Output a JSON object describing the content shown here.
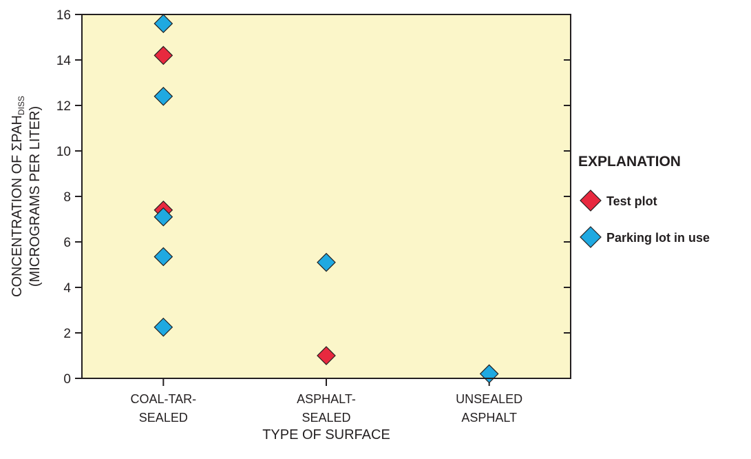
{
  "chart_data": {
    "type": "scatter",
    "x_categories": [
      [
        "COAL-TAR-",
        "SEALED"
      ],
      [
        "ASPHALT-",
        "SEALED"
      ],
      [
        "UNSEALED",
        "ASPHALT"
      ]
    ],
    "xlabel": "TYPE OF SURFACE",
    "ylabel_line1": "CONCENTRATION OF ΣPAH",
    "ylabel_subscript": "DISS",
    "ylabel_line2": "(MICROGRAMS PER LITER)",
    "ylim": [
      0,
      16
    ],
    "yticks": [
      0,
      2,
      4,
      6,
      8,
      10,
      12,
      14,
      16
    ],
    "grid": false,
    "plot_background": "#fbf6c9",
    "legend": {
      "title": "EXPLANATION",
      "placement": "right"
    },
    "series": [
      {
        "name": "Test plot",
        "color": "#e8293f",
        "marker": "diamond",
        "points": [
          {
            "x": "COAL-TAR-SEALED",
            "y": 14.2
          },
          {
            "x": "COAL-TAR-SEALED",
            "y": 7.4
          },
          {
            "x": "ASPHALT-SEALED",
            "y": 1.0
          }
        ]
      },
      {
        "name": "Parking lot in use",
        "color": "#1fa9e1",
        "marker": "diamond",
        "points": [
          {
            "x": "COAL-TAR-SEALED",
            "y": 15.6
          },
          {
            "x": "COAL-TAR-SEALED",
            "y": 12.4
          },
          {
            "x": "COAL-TAR-SEALED",
            "y": 7.1
          },
          {
            "x": "COAL-TAR-SEALED",
            "y": 5.35
          },
          {
            "x": "COAL-TAR-SEALED",
            "y": 2.25
          },
          {
            "x": "ASPHALT-SEALED",
            "y": 5.1
          },
          {
            "x": "UNSEALED ASPHALT",
            "y": 0.2
          }
        ]
      }
    ]
  }
}
